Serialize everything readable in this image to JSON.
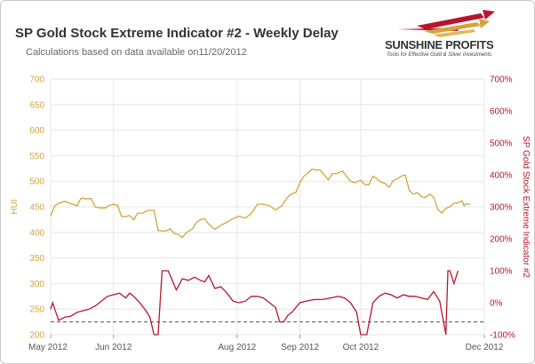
{
  "title": "SP Gold Stock Extreme Indicator #2 - Weekly Delay",
  "subtitle": "Calculations based on data available on11/20/2012",
  "logo": {
    "name": "SUNSHINE PROFITS",
    "tagline": "Tools for Effective Gold & Silver Investments"
  },
  "colors": {
    "hui": "#d4a43c",
    "indicator": "#b5162e",
    "reference_line": "#555555",
    "grid": "#e6e6e6",
    "plot_background": "#ffffff"
  },
  "chart_data": {
    "type": "line",
    "title": "SP Gold Stock Extreme Indicator #2 - Weekly Delay",
    "x_axis": {
      "type": "date",
      "range": [
        "2012-05-01",
        "2012-12-01"
      ],
      "ticks": [
        {
          "date": "2012-05-01",
          "label": "May 2012"
        },
        {
          "date": "2012-06-01",
          "label": "Jun 2012"
        },
        {
          "date": "2012-08-01",
          "label": "Aug 2012"
        },
        {
          "date": "2012-09-01",
          "label": "Sep 2012"
        },
        {
          "date": "2012-10-01",
          "label": "Oct 2012"
        },
        {
          "date": "2012-12-01",
          "label": "Dec 2012"
        }
      ]
    },
    "y_left": {
      "label": "HUI",
      "range": [
        200,
        700
      ],
      "ticks": [
        200,
        250,
        300,
        350,
        400,
        450,
        500,
        550,
        600,
        650,
        700
      ]
    },
    "y_right": {
      "label": "SP Gold Stock Extreme Indicator #2",
      "range": [
        -100,
        700
      ],
      "unit": "%",
      "ticks": [
        {
          "value": -100,
          "label": "-100%"
        },
        {
          "value": 0,
          "label": "0%"
        },
        {
          "value": 100,
          "label": "100%"
        },
        {
          "value": 200,
          "label": "200%"
        },
        {
          "value": 300,
          "label": "300%"
        },
        {
          "value": 400,
          "label": "400%"
        },
        {
          "value": 500,
          "label": "500%"
        },
        {
          "value": 600,
          "label": "600%"
        },
        {
          "value": 700,
          "label": "700%"
        }
      ]
    },
    "grid": true,
    "legend": "none",
    "reference_line": {
      "axis": "y_right",
      "value": -60,
      "style": "dashed"
    },
    "series": [
      {
        "axis": "y_left",
        "color": "#d4a43c",
        "points": [
          [
            "2012-05-01",
            432
          ],
          [
            "2012-05-03",
            452
          ],
          [
            "2012-05-05",
            457
          ],
          [
            "2012-05-08",
            461
          ],
          [
            "2012-05-11",
            456
          ],
          [
            "2012-05-14",
            452
          ],
          [
            "2012-05-16",
            467
          ],
          [
            "2012-05-18",
            466
          ],
          [
            "2012-05-21",
            466
          ],
          [
            "2012-05-23",
            450
          ],
          [
            "2012-05-25",
            448
          ],
          [
            "2012-05-28",
            448
          ],
          [
            "2012-05-30",
            453
          ],
          [
            "2012-06-01",
            455
          ],
          [
            "2012-06-03",
            453
          ],
          [
            "2012-06-05",
            431
          ],
          [
            "2012-06-07",
            431
          ],
          [
            "2012-06-09",
            433
          ],
          [
            "2012-06-11",
            425
          ],
          [
            "2012-06-13",
            438
          ],
          [
            "2012-06-15",
            437
          ],
          [
            "2012-06-18",
            443
          ],
          [
            "2012-06-21",
            443
          ],
          [
            "2012-06-23",
            404
          ],
          [
            "2012-06-25",
            403
          ],
          [
            "2012-06-27",
            403
          ],
          [
            "2012-06-29",
            407
          ],
          [
            "2012-07-01",
            398
          ],
          [
            "2012-07-03",
            396
          ],
          [
            "2012-07-05",
            390
          ],
          [
            "2012-07-07",
            400
          ],
          [
            "2012-07-10",
            407
          ],
          [
            "2012-07-12",
            420
          ],
          [
            "2012-07-14",
            425
          ],
          [
            "2012-07-16",
            427
          ],
          [
            "2012-07-18",
            416
          ],
          [
            "2012-07-21",
            406
          ],
          [
            "2012-07-24",
            414
          ],
          [
            "2012-07-27",
            420
          ],
          [
            "2012-07-30",
            427
          ],
          [
            "2012-08-02",
            432
          ],
          [
            "2012-08-05",
            428
          ],
          [
            "2012-08-08",
            437
          ],
          [
            "2012-08-11",
            455
          ],
          [
            "2012-08-14",
            455
          ],
          [
            "2012-08-17",
            452
          ],
          [
            "2012-08-20",
            444
          ],
          [
            "2012-08-23",
            452
          ],
          [
            "2012-08-26",
            469
          ],
          [
            "2012-08-28",
            476
          ],
          [
            "2012-08-30",
            478
          ],
          [
            "2012-09-01",
            498
          ],
          [
            "2012-09-03",
            510
          ],
          [
            "2012-09-05",
            516
          ],
          [
            "2012-09-07",
            524
          ],
          [
            "2012-09-09",
            522
          ],
          [
            "2012-09-11",
            522
          ],
          [
            "2012-09-13",
            512
          ],
          [
            "2012-09-15",
            503
          ],
          [
            "2012-09-17",
            515
          ],
          [
            "2012-09-19",
            515
          ],
          [
            "2012-09-22",
            520
          ],
          [
            "2012-09-24",
            510
          ],
          [
            "2012-09-26",
            500
          ],
          [
            "2012-09-28",
            497
          ],
          [
            "2012-10-01",
            502
          ],
          [
            "2012-10-03",
            494
          ],
          [
            "2012-10-05",
            493
          ],
          [
            "2012-10-07",
            510
          ],
          [
            "2012-10-09",
            505
          ],
          [
            "2012-10-11",
            498
          ],
          [
            "2012-10-13",
            496
          ],
          [
            "2012-10-15",
            488
          ],
          [
            "2012-10-17",
            501
          ],
          [
            "2012-10-19",
            505
          ],
          [
            "2012-10-21",
            510
          ],
          [
            "2012-10-23",
            512
          ],
          [
            "2012-10-25",
            482
          ],
          [
            "2012-10-27",
            475
          ],
          [
            "2012-10-29",
            478
          ],
          [
            "2012-10-31",
            470
          ],
          [
            "2012-11-02",
            468
          ],
          [
            "2012-11-04",
            475
          ],
          [
            "2012-11-06",
            469
          ],
          [
            "2012-11-08",
            445
          ],
          [
            "2012-11-10",
            438
          ],
          [
            "2012-11-12",
            447
          ],
          [
            "2012-11-14",
            450
          ],
          [
            "2012-11-16",
            457
          ],
          [
            "2012-11-18",
            458
          ],
          [
            "2012-11-20",
            462
          ],
          [
            "2012-11-21",
            452
          ],
          [
            "2012-11-22",
            456
          ],
          [
            "2012-11-24",
            455
          ]
        ]
      },
      {
        "axis": "y_right",
        "color": "#b5162e",
        "points": [
          [
            "2012-05-01",
            -20
          ],
          [
            "2012-05-02",
            0
          ],
          [
            "2012-05-03",
            -20
          ],
          [
            "2012-05-05",
            -55
          ],
          [
            "2012-05-08",
            -45
          ],
          [
            "2012-05-11",
            -42
          ],
          [
            "2012-05-14",
            -30
          ],
          [
            "2012-05-17",
            -25
          ],
          [
            "2012-05-20",
            -20
          ],
          [
            "2012-05-23",
            -10
          ],
          [
            "2012-05-26",
            5
          ],
          [
            "2012-05-29",
            20
          ],
          [
            "2012-06-01",
            25
          ],
          [
            "2012-06-04",
            30
          ],
          [
            "2012-06-07",
            15
          ],
          [
            "2012-06-09",
            30
          ],
          [
            "2012-06-11",
            20
          ],
          [
            "2012-06-14",
            0
          ],
          [
            "2012-06-17",
            -25
          ],
          [
            "2012-06-19",
            -45
          ],
          [
            "2012-06-21",
            -100
          ],
          [
            "2012-06-23",
            -100
          ],
          [
            "2012-06-25",
            100
          ],
          [
            "2012-06-28",
            100
          ],
          [
            "2012-07-02",
            40
          ],
          [
            "2012-07-05",
            75
          ],
          [
            "2012-07-08",
            70
          ],
          [
            "2012-07-11",
            80
          ],
          [
            "2012-07-14",
            70
          ],
          [
            "2012-07-16",
            65
          ],
          [
            "2012-07-18",
            85
          ],
          [
            "2012-07-21",
            45
          ],
          [
            "2012-07-24",
            50
          ],
          [
            "2012-07-27",
            30
          ],
          [
            "2012-07-30",
            5
          ],
          [
            "2012-08-02",
            0
          ],
          [
            "2012-08-05",
            5
          ],
          [
            "2012-08-08",
            20
          ],
          [
            "2012-08-11",
            20
          ],
          [
            "2012-08-14",
            15
          ],
          [
            "2012-08-17",
            0
          ],
          [
            "2012-08-20",
            -15
          ],
          [
            "2012-08-22",
            -60
          ],
          [
            "2012-08-24",
            -60
          ],
          [
            "2012-08-26",
            -40
          ],
          [
            "2012-08-28",
            -30
          ],
          [
            "2012-09-01",
            0
          ],
          [
            "2012-09-04",
            5
          ],
          [
            "2012-09-08",
            10
          ],
          [
            "2012-09-12",
            10
          ],
          [
            "2012-09-16",
            15
          ],
          [
            "2012-09-20",
            20
          ],
          [
            "2012-09-23",
            15
          ],
          [
            "2012-09-26",
            0
          ],
          [
            "2012-09-29",
            -30
          ],
          [
            "2012-10-01",
            -100
          ],
          [
            "2012-10-04",
            -100
          ],
          [
            "2012-10-07",
            0
          ],
          [
            "2012-10-10",
            20
          ],
          [
            "2012-10-13",
            30
          ],
          [
            "2012-10-16",
            25
          ],
          [
            "2012-10-19",
            15
          ],
          [
            "2012-10-22",
            25
          ],
          [
            "2012-10-25",
            20
          ],
          [
            "2012-10-28",
            20
          ],
          [
            "2012-10-31",
            15
          ],
          [
            "2012-11-03",
            10
          ],
          [
            "2012-11-06",
            35
          ],
          [
            "2012-11-09",
            5
          ],
          [
            "2012-11-12",
            -100
          ],
          [
            "2012-11-13",
            100
          ],
          [
            "2012-11-14",
            100
          ],
          [
            "2012-11-16",
            60
          ],
          [
            "2012-11-18",
            100
          ]
        ]
      }
    ]
  }
}
